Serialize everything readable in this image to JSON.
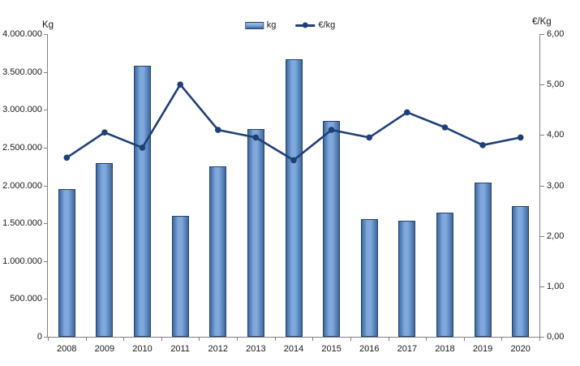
{
  "chart_data": {
    "type": "combo",
    "title": "",
    "categories": [
      "2008",
      "2009",
      "2010",
      "2011",
      "2012",
      "2013",
      "2014",
      "2015",
      "2016",
      "2017",
      "2018",
      "2019",
      "2020"
    ],
    "series": [
      {
        "name": "kg",
        "type": "bar",
        "axis": "left",
        "values": [
          1950000,
          2300000,
          3580000,
          1600000,
          2250000,
          2750000,
          3670000,
          2850000,
          1560000,
          1530000,
          1640000,
          2040000,
          1730000
        ]
      },
      {
        "name": "€/kg",
        "type": "line",
        "axis": "right",
        "values": [
          3.55,
          4.05,
          3.75,
          5.0,
          4.1,
          3.95,
          3.5,
          4.1,
          3.95,
          4.45,
          4.15,
          3.8,
          3.95
        ]
      }
    ],
    "axes": {
      "left": {
        "title": "Kg",
        "min": 0,
        "max": 4000000,
        "tick_labels": [
          "0",
          "500.000",
          "1.000.000",
          "1.500.000",
          "2.000.000",
          "2.500.000",
          "3.000.000",
          "3.500.000",
          "4.000.000"
        ]
      },
      "right": {
        "title": "€/Kg",
        "min": 0,
        "max": 6,
        "tick_labels": [
          "0,00",
          "1,00",
          "2,00",
          "3,00",
          "4,00",
          "5,00",
          "6,00"
        ]
      }
    },
    "grid": false,
    "legend_position": "top-center"
  },
  "colors": {
    "bar_fill_center": "#7FA9DC",
    "bar_fill_edge": "#3D689F",
    "bar_fill_light": "#9DBEE8",
    "bar_border": "#24436D",
    "line": "#1F4077",
    "axis": "#808080",
    "text": "#1A1A1A",
    "background": "#FFFFFF"
  }
}
